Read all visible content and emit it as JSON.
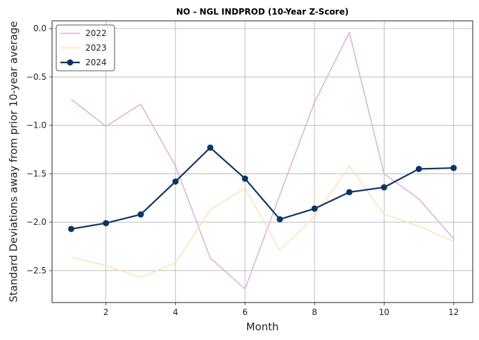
{
  "chart_data": {
    "type": "line",
    "title": "NO - NGL INDPROD (10-Year Z-Score)",
    "xlabel": "Month",
    "ylabel": "Standard Deviations away from prior 10-year average",
    "x": [
      1,
      2,
      3,
      4,
      5,
      6,
      7,
      8,
      9,
      10,
      11,
      12
    ],
    "xlim": [
      0.45,
      12.55
    ],
    "ylim": [
      -2.83,
      0.08
    ],
    "xticks": [
      2,
      4,
      6,
      8,
      10,
      12
    ],
    "xtick_labels": [
      "2",
      "4",
      "6",
      "8",
      "10",
      "12"
    ],
    "yticks": [
      0.0,
      -0.5,
      -1.0,
      -1.5,
      -2.0,
      -2.5
    ],
    "ytick_labels": [
      "0.0",
      "−0.5",
      "−1.0",
      "−1.5",
      "−2.0",
      "−2.5"
    ],
    "grid": true,
    "legend_position": "top-left",
    "series": [
      {
        "name": "2022",
        "color": "#dcaedb",
        "marker": false,
        "values": [
          -0.73,
          -1.01,
          -0.78,
          -1.42,
          -2.37,
          -2.69,
          -1.72,
          -0.76,
          -0.04,
          -1.5,
          -1.76,
          -2.17
        ]
      },
      {
        "name": "2023",
        "color": "#fde2b4",
        "marker": false,
        "values": [
          -2.36,
          -2.45,
          -2.57,
          -2.42,
          -1.87,
          -1.65,
          -2.29,
          -1.94,
          -1.42,
          -1.92,
          -2.04,
          -2.2
        ]
      },
      {
        "name": "2024",
        "color": "#0b3565",
        "marker": true,
        "values": [
          -2.07,
          -2.01,
          -1.92,
          -1.58,
          -1.23,
          -1.55,
          -1.97,
          -1.86,
          -1.69,
          -1.64,
          -1.45,
          -1.44
        ]
      }
    ]
  }
}
